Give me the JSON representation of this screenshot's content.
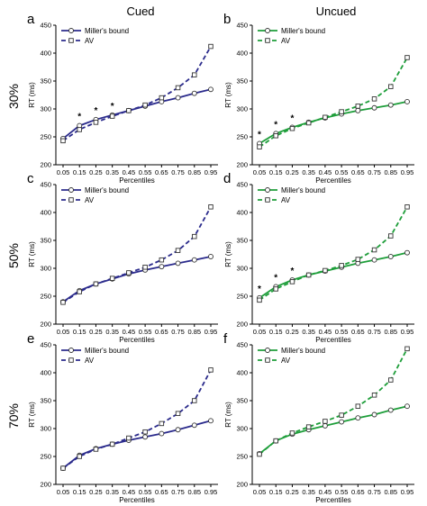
{
  "column_titles": [
    "Cued",
    "Uncued"
  ],
  "row_labels": [
    "30%",
    "50%",
    "70%"
  ],
  "colors": {
    "blue": "#2b2b8c",
    "green": "#1e9e3a",
    "axis": "#000000"
  },
  "chart_data": [
    {
      "type": "line",
      "panel": "a",
      "x": [
        0.05,
        0.15,
        0.25,
        0.35,
        0.45,
        0.55,
        0.65,
        0.75,
        0.85,
        0.95
      ],
      "xlabel": "Percentiles",
      "ylabel": "RT (ms)",
      "ylim": [
        200,
        450
      ],
      "yticks": [
        200,
        250,
        300,
        350,
        400,
        450
      ],
      "legend_position": "top-left",
      "series": [
        {
          "name": "Miller's bound",
          "style": "solid-circle",
          "values": [
            247,
            270,
            281,
            289,
            297,
            305,
            313,
            320,
            328,
            335
          ]
        },
        {
          "name": "AV",
          "style": "dashed-square",
          "values": [
            243,
            263,
            276,
            287,
            297,
            307,
            320,
            338,
            361,
            412
          ]
        }
      ],
      "significant_x": [
        0.15,
        0.25,
        0.35
      ]
    },
    {
      "type": "line",
      "panel": "b",
      "x": [
        0.05,
        0.15,
        0.25,
        0.35,
        0.45,
        0.55,
        0.65,
        0.75,
        0.85,
        0.95
      ],
      "xlabel": "Percentiles",
      "ylabel": "RT (ms)",
      "ylim": [
        200,
        450
      ],
      "yticks": [
        200,
        250,
        300,
        350,
        400,
        450
      ],
      "legend_position": "top-left",
      "series": [
        {
          "name": "Miller's bound",
          "style": "solid-circle",
          "values": [
            238,
            256,
            267,
            276,
            284,
            291,
            297,
            302,
            307,
            313
          ]
        },
        {
          "name": "AV",
          "style": "dashed-square",
          "values": [
            232,
            252,
            265,
            275,
            285,
            295,
            305,
            318,
            340,
            392
          ]
        }
      ],
      "significant_x": [
        0.05,
        0.15,
        0.25
      ]
    },
    {
      "type": "line",
      "panel": "c",
      "x": [
        0.05,
        0.15,
        0.25,
        0.35,
        0.45,
        0.55,
        0.65,
        0.75,
        0.85,
        0.95
      ],
      "xlabel": "Percentiles",
      "ylabel": "RT (ms)",
      "ylim": [
        200,
        450
      ],
      "yticks": [
        200,
        250,
        300,
        350,
        400,
        450
      ],
      "legend_position": "top-left",
      "series": [
        {
          "name": "Miller's bound",
          "style": "solid-circle",
          "values": [
            240,
            260,
            272,
            281,
            290,
            297,
            303,
            309,
            315,
            321
          ]
        },
        {
          "name": "AV",
          "style": "dashed-square",
          "values": [
            239,
            258,
            272,
            282,
            292,
            302,
            315,
            332,
            357,
            410
          ]
        }
      ],
      "significant_x": []
    },
    {
      "type": "line",
      "panel": "d",
      "x": [
        0.05,
        0.15,
        0.25,
        0.35,
        0.45,
        0.55,
        0.65,
        0.75,
        0.85,
        0.95
      ],
      "xlabel": "Percentiles",
      "ylabel": "RT (ms)",
      "ylim": [
        200,
        450
      ],
      "yticks": [
        200,
        250,
        300,
        350,
        400,
        450
      ],
      "legend_position": "top-left",
      "series": [
        {
          "name": "Miller's bound",
          "style": "solid-circle",
          "values": [
            247,
            267,
            279,
            288,
            295,
            302,
            309,
            315,
            321,
            328
          ]
        },
        {
          "name": "AV",
          "style": "dashed-square",
          "values": [
            243,
            263,
            276,
            288,
            296,
            305,
            316,
            333,
            358,
            410
          ]
        }
      ],
      "significant_x": [
        0.05,
        0.15,
        0.25
      ]
    },
    {
      "type": "line",
      "panel": "e",
      "x": [
        0.05,
        0.15,
        0.25,
        0.35,
        0.45,
        0.55,
        0.65,
        0.75,
        0.85,
        0.95
      ],
      "xlabel": "Percentiles",
      "ylabel": "RT (ms)",
      "ylim": [
        200,
        450
      ],
      "yticks": [
        200,
        250,
        300,
        350,
        400,
        450
      ],
      "legend_position": "top-left",
      "series": [
        {
          "name": "Miller's bound",
          "style": "solid-circle",
          "values": [
            229,
            252,
            264,
            272,
            279,
            285,
            291,
            298,
            306,
            314
          ]
        },
        {
          "name": "AV",
          "style": "dashed-square",
          "values": [
            229,
            250,
            263,
            272,
            283,
            294,
            309,
            327,
            350,
            405
          ]
        }
      ],
      "significant_x": []
    },
    {
      "type": "line",
      "panel": "f",
      "x": [
        0.05,
        0.15,
        0.25,
        0.35,
        0.45,
        0.55,
        0.65,
        0.75,
        0.85,
        0.95
      ],
      "xlabel": "Percentiles",
      "ylabel": "RT (ms)",
      "ylim": [
        200,
        450
      ],
      "yticks": [
        200,
        250,
        300,
        350,
        400,
        450
      ],
      "legend_position": "top-left",
      "series": [
        {
          "name": "Miller's bound",
          "style": "solid-circle",
          "values": [
            255,
            278,
            290,
            298,
            305,
            312,
            319,
            325,
            333,
            340
          ]
        },
        {
          "name": "AV",
          "style": "dashed-square",
          "values": [
            254,
            278,
            292,
            303,
            313,
            324,
            340,
            360,
            387,
            443
          ]
        }
      ],
      "significant_x": []
    }
  ]
}
